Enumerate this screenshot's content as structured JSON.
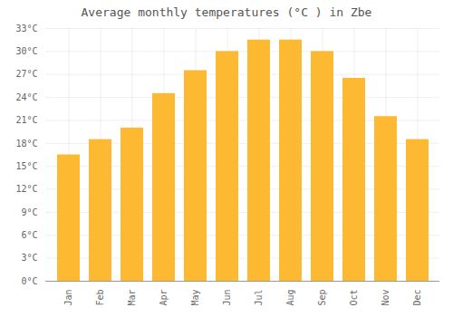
{
  "chart_data": {
    "type": "bar",
    "title": "Average monthly temperatures (°C ) in Zbe",
    "categories": [
      "Jan",
      "Feb",
      "Mar",
      "Apr",
      "May",
      "Jun",
      "Jul",
      "Aug",
      "Sep",
      "Oct",
      "Nov",
      "Dec"
    ],
    "values": [
      16.5,
      18.5,
      20.0,
      24.5,
      27.5,
      30.0,
      31.5,
      31.5,
      30.0,
      26.5,
      21.5,
      18.5
    ],
    "color": "#FDB931",
    "ylim": [
      0,
      33
    ],
    "yticks": [
      {
        "value": 0,
        "label": "0°C"
      },
      {
        "value": 3,
        "label": "3°C"
      },
      {
        "value": 6,
        "label": "6°C"
      },
      {
        "value": 9,
        "label": "9°C"
      },
      {
        "value": 12,
        "label": "12°C"
      },
      {
        "value": 15,
        "label": "15°C"
      },
      {
        "value": 18,
        "label": "18°C"
      },
      {
        "value": 21,
        "label": "21°C"
      },
      {
        "value": 24,
        "label": "24°C"
      },
      {
        "value": 27,
        "label": "27°C"
      },
      {
        "value": 30,
        "label": "30°C"
      },
      {
        "value": 33,
        "label": "33°C"
      }
    ],
    "grid": true
  }
}
